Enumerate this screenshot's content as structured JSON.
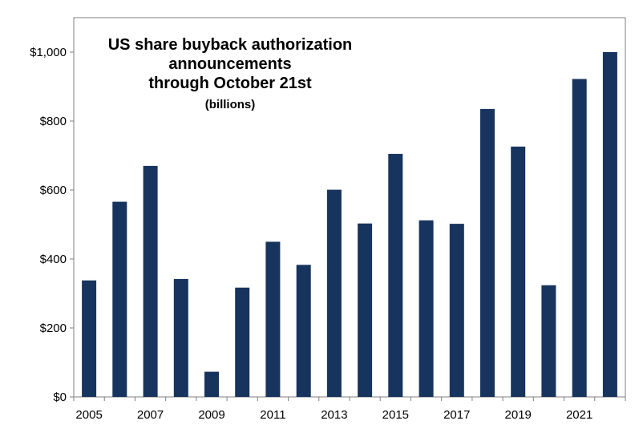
{
  "chart_data": {
    "type": "bar",
    "title_lines": [
      "US share buyback authorization",
      "announcements",
      "through October 21st"
    ],
    "subtitle": "(billions)",
    "xlabel": "",
    "ylabel": "",
    "categories": [
      "2005",
      "2006",
      "2007",
      "2008",
      "2009",
      "2010",
      "2011",
      "2012",
      "2013",
      "2014",
      "2015",
      "2016",
      "2017",
      "2018",
      "2019",
      "2020",
      "2021",
      "2022"
    ],
    "x_tick_labels": [
      "2005",
      "2007",
      "2009",
      "2011",
      "2013",
      "2015",
      "2017",
      "2019",
      "2021"
    ],
    "values": [
      338,
      566,
      670,
      342,
      73,
      317,
      450,
      383,
      601,
      503,
      705,
      512,
      502,
      835,
      726,
      324,
      922,
      1000
    ],
    "ylim": [
      0,
      1000
    ],
    "y_ticks": [
      0,
      200,
      400,
      600,
      800,
      1000
    ],
    "y_tick_labels": [
      "$0",
      "$200",
      "$400",
      "$600",
      "$800",
      "$1,000"
    ],
    "grid": false,
    "bar_color": "#17345e"
  }
}
